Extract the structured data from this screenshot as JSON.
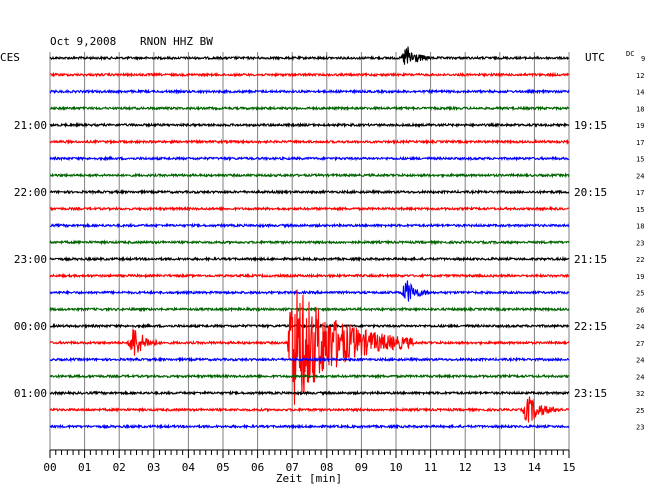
{
  "header": {
    "date": "Oct 9,2008",
    "station": "RNON HHZ BW",
    "left_tz": "CES",
    "right_tz": "UTC",
    "dc_label": "DC"
  },
  "chart_data": {
    "type": "line",
    "subtype": "helicorder",
    "xlabel": "Zeit [min]",
    "xlim": [
      0,
      15
    ],
    "x_ticks": [
      "00",
      "01",
      "02",
      "03",
      "04",
      "05",
      "06",
      "07",
      "08",
      "09",
      "10",
      "11",
      "12",
      "13",
      "14",
      "15"
    ],
    "trace_colors": [
      "#000000",
      "#ff0000",
      "#0000ff",
      "#006400"
    ],
    "grid": true,
    "left_time_labels": [
      {
        "row": 4,
        "label": "21:00"
      },
      {
        "row": 8,
        "label": "22:00"
      },
      {
        "row": 12,
        "label": "23:00"
      },
      {
        "row": 16,
        "label": "00:00"
      },
      {
        "row": 20,
        "label": "01:00"
      }
    ],
    "right_time_labels": [
      {
        "row": 4,
        "label": "19:15"
      },
      {
        "row": 8,
        "label": "20:15"
      },
      {
        "row": 12,
        "label": "21:15"
      },
      {
        "row": 16,
        "label": "22:15"
      },
      {
        "row": 20,
        "label": "23:15"
      }
    ],
    "dc_offsets": [
      9,
      12,
      14,
      18,
      19,
      17,
      15,
      24,
      17,
      15,
      18,
      23,
      22,
      19,
      25,
      26,
      24,
      27,
      24,
      24,
      32,
      25,
      23
    ],
    "events": [
      {
        "row": 0,
        "minute": 10.3,
        "amplitude": 1.6,
        "duration_min": 0.7
      },
      {
        "row": 14,
        "minute": 10.3,
        "amplitude": 1.6,
        "duration_min": 0.7
      },
      {
        "row": 17,
        "minute": 2.4,
        "amplitude": 2.2,
        "duration_min": 0.8
      },
      {
        "row": 17,
        "minute": 7.0,
        "amplitude": 8.0,
        "duration_min": 3.5
      },
      {
        "row": 21,
        "minute": 13.8,
        "amplitude": 1.8,
        "duration_min": 1.0
      }
    ]
  }
}
